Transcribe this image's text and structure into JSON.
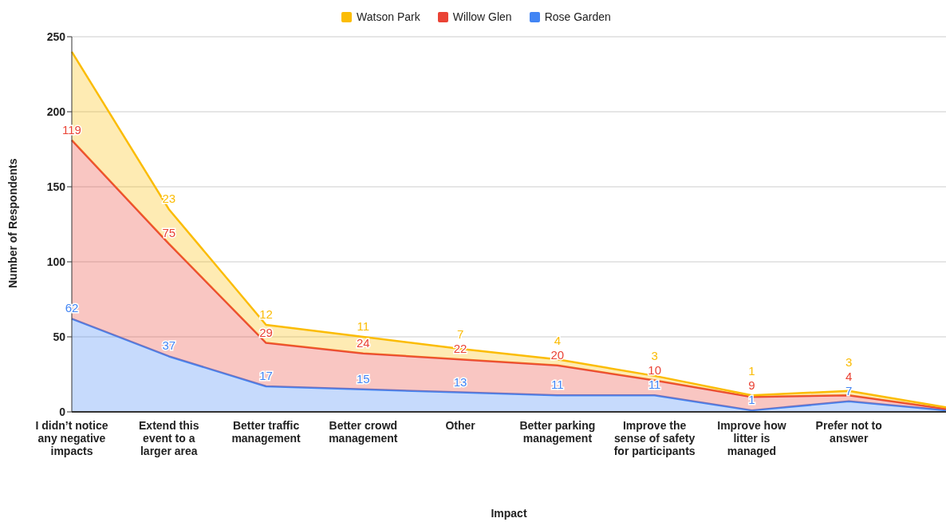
{
  "chart_data": {
    "type": "area",
    "stacked": true,
    "xlabel": "Impact",
    "ylabel": "Number of Respondents",
    "categories": [
      "I didn’t notice any negative impacts",
      "Extend this event to a larger area",
      "Better traffic management",
      "Better crowd management",
      "Other",
      "Better parking management",
      "Improve the sense of safety for participants",
      "Improve how litter is managed",
      "Prefer not to answer",
      null
    ],
    "series": [
      {
        "name": "Rose Garden",
        "color": "#4285f4",
        "values": [
          62,
          37,
          17,
          15,
          13,
          11,
          11,
          1,
          7,
          1
        ],
        "value_labels": [
          "62",
          "37",
          "17",
          "15",
          "13",
          "11",
          "11",
          "1",
          "7",
          null
        ]
      },
      {
        "name": "Willow Glen",
        "color": "#ea4335",
        "values": [
          119,
          75,
          29,
          24,
          22,
          20,
          10,
          9,
          4,
          1
        ],
        "value_labels": [
          "119",
          "75",
          "29",
          "24",
          "22",
          "20",
          "10",
          "9",
          "4",
          null
        ]
      },
      {
        "name": "Watson Park",
        "color": "#fbbc04",
        "values": [
          59,
          23,
          12,
          11,
          7,
          4,
          3,
          1,
          3,
          1
        ],
        "value_labels": [
          null,
          "23",
          "12",
          "11",
          "7",
          "4",
          "3",
          "1",
          "3",
          null
        ]
      }
    ],
    "ylim": [
      0,
      250
    ],
    "yticks": [
      0,
      50,
      100,
      150,
      200,
      250
    ],
    "grid": "y",
    "legend": "top"
  }
}
